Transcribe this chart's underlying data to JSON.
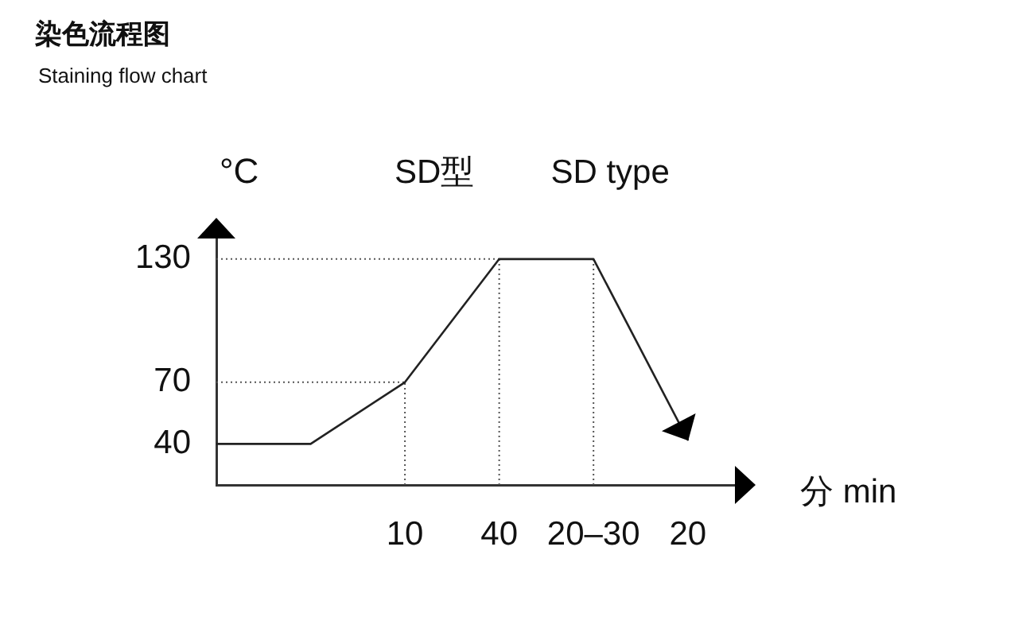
{
  "chart_data": {
    "type": "line",
    "title": "染色流程图",
    "subtitle": "Staining flow chart",
    "xlabel": "分 min",
    "ylabel": "°C",
    "annotations": [
      "SD型",
      "SD type"
    ],
    "categories": [
      null,
      null,
      "10",
      "40",
      "20–30",
      "20"
    ],
    "values": [
      40,
      40,
      70,
      130,
      130,
      42
    ],
    "color": "#222222",
    "ylim": [
      20,
      140
    ],
    "yticks": [
      40,
      70,
      130
    ],
    "legend": false,
    "marker": "none",
    "ref_lines": [
      {
        "axis": "y",
        "value": 70,
        "color": "#555555",
        "line_style": "dotted"
      },
      {
        "axis": "y",
        "value": 130,
        "color": "#555555",
        "line_style": "dotted"
      },
      {
        "axis": "x",
        "value": "10",
        "color": "#555555",
        "line_style": "dotted"
      },
      {
        "axis": "x",
        "value": "40",
        "color": "#555555",
        "line_style": "dotted"
      },
      {
        "axis": "x",
        "value": "20–30",
        "color": "#555555",
        "line_style": "dotted"
      }
    ]
  }
}
